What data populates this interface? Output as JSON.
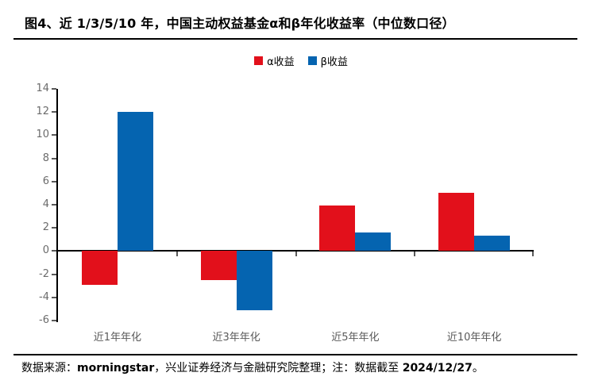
{
  "title": "图4、近 1/3/5/10 年，中国主动权益基金α和β年化收益率（中位数口径）",
  "footer": {
    "segments": [
      {
        "text": "数据来源：",
        "bold": false
      },
      {
        "text": "morningstar",
        "bold": true
      },
      {
        "text": "，兴业证券经济与金融研究院整理；注：数据截至 ",
        "bold": false
      },
      {
        "text": "2024/12/27",
        "bold": true
      },
      {
        "text": "。",
        "bold": false
      }
    ]
  },
  "colors": {
    "alpha_red": "#e2101b",
    "beta_blue": "#0564b0",
    "axis_line": "#000000",
    "tick_label_gray": "#6b6b6b",
    "category_label_gray": "#595959"
  },
  "chart_data": {
    "type": "bar",
    "title": "图4、近 1/3/5/10 年，中国主动权益基金α和β年化收益率（中位数口径）",
    "categories": [
      "近1年年化",
      "近3年年化",
      "近5年年化",
      "近10年年化"
    ],
    "series": [
      {
        "name": "α收益",
        "color": "#e2101b",
        "values": [
          -2.9,
          -2.5,
          3.9,
          5.0
        ]
      },
      {
        "name": "β收益",
        "color": "#0564b0",
        "values": [
          12.0,
          -5.1,
          1.6,
          1.3
        ]
      }
    ],
    "xlabel": "",
    "ylabel": "",
    "ylim": [
      -6,
      14
    ],
    "yticks": [
      14,
      12,
      10,
      8,
      6,
      4,
      2,
      0,
      -2,
      -4,
      -6
    ],
    "grid": false,
    "legend_position": "top-center"
  }
}
